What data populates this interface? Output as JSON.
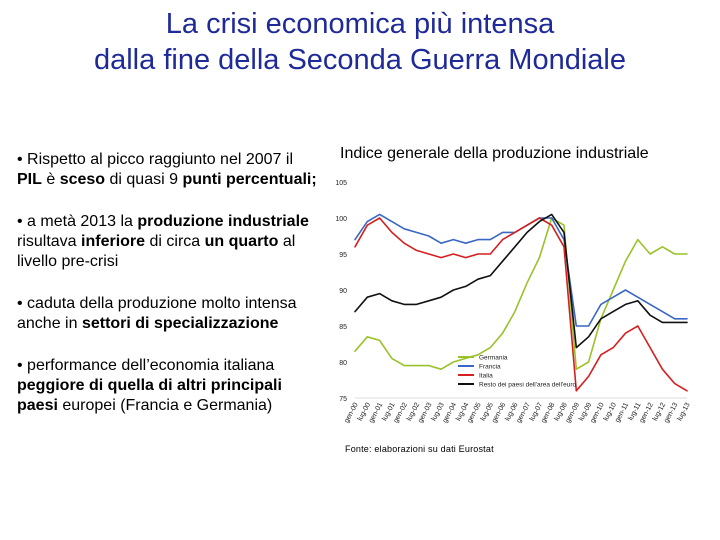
{
  "slide": {
    "title_line1": "La crisi economica più intensa",
    "title_line2": "dalla fine della Seconda Guerra Mondiale",
    "bullets": [
      [
        {
          "t": "• Rispetto al picco raggiunto nel 2007 il ",
          "b": false
        },
        {
          "t": "PIL",
          "b": true
        },
        {
          "t": " è ",
          "b": false
        },
        {
          "t": "sceso",
          "b": true
        },
        {
          "t": " di quasi 9 ",
          "b": false
        },
        {
          "t": "punti percentuali;",
          "b": true
        }
      ],
      [
        {
          "t": "• a metà 2013 la ",
          "b": false
        },
        {
          "t": "produzione industriale",
          "b": true
        },
        {
          "t": " risultava ",
          "b": false
        },
        {
          "t": "inferiore",
          "b": true
        },
        {
          "t": " di circa ",
          "b": false
        },
        {
          "t": "un quarto",
          "b": true
        },
        {
          "t": " al livello pre-crisi",
          "b": false
        }
      ],
      [
        {
          "t": "• caduta della produzione molto intensa anche in ",
          "b": false
        },
        {
          "t": "settori di specializzazione",
          "b": true
        }
      ],
      [
        {
          "t": "• performance dell’economia italiana ",
          "b": false
        },
        {
          "t": "peggiore di quella di altri principali paesi",
          "b": true
        },
        {
          "t": " europei (Francia e Germania)",
          "b": false
        }
      ]
    ],
    "chart_heading": "Indice generale della produzione industriale",
    "source_note": "Fonte: elaborazioni su dati Eurostat"
  },
  "chart_data": {
    "type": "line",
    "x": [
      "gen-00",
      "lug-00",
      "gen-01",
      "lug-01",
      "gen-02",
      "lug-02",
      "gen-03",
      "lug-03",
      "gen-04",
      "lug-04",
      "gen-05",
      "lug-05",
      "gen-06",
      "lug-06",
      "gen-07",
      "lug-07",
      "gen-08",
      "lug-08",
      "gen-09",
      "lug-09",
      "gen-10",
      "lug-10",
      "gen-11",
      "lug-11",
      "gen-12",
      "lug-12",
      "gen-13",
      "lug-13"
    ],
    "ylim": [
      75,
      105
    ],
    "yticks": [
      75,
      80,
      85,
      90,
      95,
      100,
      105
    ],
    "grid": false,
    "legend_position": "bottom-center",
    "series": [
      {
        "name": "Germania",
        "color": "#9ac22a",
        "values": [
          81.5,
          83.5,
          83,
          80.5,
          79.5,
          79.5,
          79.5,
          79,
          80,
          80.5,
          81,
          82,
          84,
          87,
          91,
          94.5,
          100,
          99,
          79,
          80,
          86,
          90,
          94,
          97,
          95,
          96,
          95,
          95
        ]
      },
      {
        "name": "Francia",
        "color": "#3a67c4",
        "values": [
          97,
          99.5,
          100.5,
          99.5,
          98.5,
          98,
          97.5,
          96.5,
          97,
          96.5,
          97,
          97,
          98,
          98,
          99,
          100,
          100,
          97,
          85,
          85,
          88,
          89,
          90,
          89,
          88,
          87,
          86,
          86
        ]
      },
      {
        "name": "Italia",
        "color": "#d42020",
        "values": [
          96,
          99,
          100,
          98,
          96.5,
          95.5,
          95,
          94.5,
          95,
          94.5,
          95,
          95,
          97,
          98,
          99,
          100,
          99,
          96,
          76,
          78,
          81,
          82,
          84,
          85,
          82,
          79,
          77,
          76
        ]
      },
      {
        "name": "Resto dei paesi dell'area dell'euro",
        "color": "#111111",
        "values": [
          87,
          89,
          89.5,
          88.5,
          88,
          88,
          88.5,
          89,
          90,
          90.5,
          91.5,
          92,
          94,
          96,
          98,
          99.5,
          100.5,
          98,
          82,
          83.5,
          86,
          87,
          88,
          88.5,
          86.5,
          85.5,
          85.5,
          85.5
        ]
      }
    ]
  }
}
